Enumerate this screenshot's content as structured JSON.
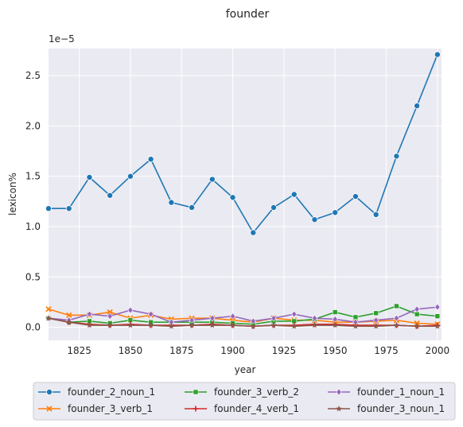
{
  "chart_data": {
    "type": "line",
    "title": "founder",
    "xlabel": "year",
    "ylabel": "lexicon%",
    "y_scale_label": "1e−5",
    "xlim": [
      1810,
      2002
    ],
    "ylim": [
      -0.13,
      2.77
    ],
    "x_ticks": [
      1825,
      1850,
      1875,
      1900,
      1925,
      1950,
      1975,
      2000
    ],
    "y_ticks": [
      0.0,
      0.5,
      1.0,
      1.5,
      2.0,
      2.5
    ],
    "x_tick_labels": [
      "1825",
      "1850",
      "1875",
      "1900",
      "1925",
      "1950",
      "1975",
      "2000"
    ],
    "y_tick_labels": [
      "0.0",
      "0.5",
      "1.0",
      "1.5",
      "2.0",
      "2.5"
    ],
    "grid": true,
    "legend_position": "bottom",
    "x": [
      1810,
      1820,
      1830,
      1840,
      1850,
      1860,
      1870,
      1880,
      1890,
      1900,
      1910,
      1920,
      1930,
      1940,
      1950,
      1960,
      1970,
      1980,
      1990,
      2000
    ],
    "series": [
      {
        "name": "founder_2_noun_1",
        "color": "#1f77b4",
        "marker": "circle",
        "values": [
          1.18,
          1.18,
          1.49,
          1.31,
          1.5,
          1.67,
          1.24,
          1.19,
          1.47,
          1.29,
          0.94,
          1.19,
          1.32,
          1.07,
          1.14,
          1.3,
          1.12,
          1.7,
          2.2,
          2.71
        ]
      },
      {
        "name": "founder_3_verb_1",
        "color": "#ff7f0e",
        "marker": "x",
        "values": [
          0.18,
          0.12,
          0.12,
          0.15,
          0.09,
          0.12,
          0.08,
          0.09,
          0.09,
          0.07,
          0.05,
          0.09,
          0.07,
          0.07,
          0.05,
          0.05,
          0.06,
          0.07,
          0.04,
          0.03
        ]
      },
      {
        "name": "founder_3_verb_2",
        "color": "#2ca02c",
        "marker": "square",
        "values": [
          0.09,
          0.05,
          0.06,
          0.04,
          0.07,
          0.05,
          0.05,
          0.05,
          0.05,
          0.04,
          0.03,
          0.06,
          0.06,
          0.08,
          0.15,
          0.1,
          0.14,
          0.21,
          0.13,
          0.11
        ]
      },
      {
        "name": "founder_4_verb_1",
        "color": "#d62728",
        "marker": "plus",
        "values": [
          0.09,
          0.05,
          0.03,
          0.02,
          0.03,
          0.02,
          0.02,
          0.02,
          0.03,
          0.02,
          0.01,
          0.02,
          0.02,
          0.03,
          0.03,
          0.02,
          0.02,
          0.02,
          0.01,
          0.02
        ]
      },
      {
        "name": "founder_1_noun_1",
        "color": "#9467bd",
        "marker": "diamond",
        "values": [
          0.09,
          0.07,
          0.13,
          0.11,
          0.17,
          0.13,
          0.05,
          0.07,
          0.09,
          0.11,
          0.06,
          0.09,
          0.13,
          0.09,
          0.08,
          0.05,
          0.07,
          0.09,
          0.18,
          0.2
        ]
      },
      {
        "name": "founder_3_noun_1",
        "color": "#8c564b",
        "marker": "star",
        "values": [
          0.09,
          0.05,
          0.02,
          0.02,
          0.02,
          0.02,
          0.01,
          0.02,
          0.02,
          0.02,
          0.01,
          0.02,
          0.01,
          0.02,
          0.02,
          0.01,
          0.01,
          0.02,
          0.01,
          0.01
        ]
      }
    ]
  }
}
